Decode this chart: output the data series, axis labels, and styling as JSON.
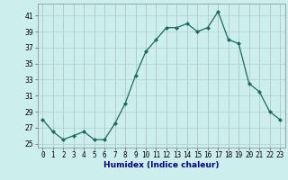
{
  "x": [
    0,
    1,
    2,
    3,
    4,
    5,
    6,
    7,
    8,
    9,
    10,
    11,
    12,
    13,
    14,
    15,
    16,
    17,
    18,
    19,
    20,
    21,
    22,
    23
  ],
  "y": [
    28,
    26.5,
    25.5,
    26,
    26.5,
    25.5,
    25.5,
    27.5,
    30,
    33.5,
    36.5,
    38,
    39.5,
    39.5,
    40,
    39,
    39.5,
    41.5,
    38,
    37.5,
    32.5,
    31.5,
    29,
    28
  ],
  "line_color": "#1a6b5e",
  "marker": "D",
  "marker_size": 2,
  "bg_color": "#cceeed",
  "grid_color": "#aad4d3",
  "grid_minor_color": "#bbdddd",
  "xlabel": "Humidex (Indice chaleur)",
  "xlim": [
    -0.5,
    23.5
  ],
  "ylim": [
    24.5,
    42.5
  ],
  "yticks": [
    25,
    27,
    29,
    31,
    33,
    35,
    37,
    39,
    41
  ],
  "xtick_labels": [
    "0",
    "1",
    "2",
    "3",
    "4",
    "5",
    "6",
    "7",
    "8",
    "9",
    "10",
    "11",
    "12",
    "13",
    "14",
    "15",
    "16",
    "17",
    "18",
    "19",
    "20",
    "21",
    "22",
    "23"
  ],
  "label_fontsize": 6.5,
  "tick_fontsize": 5.5
}
